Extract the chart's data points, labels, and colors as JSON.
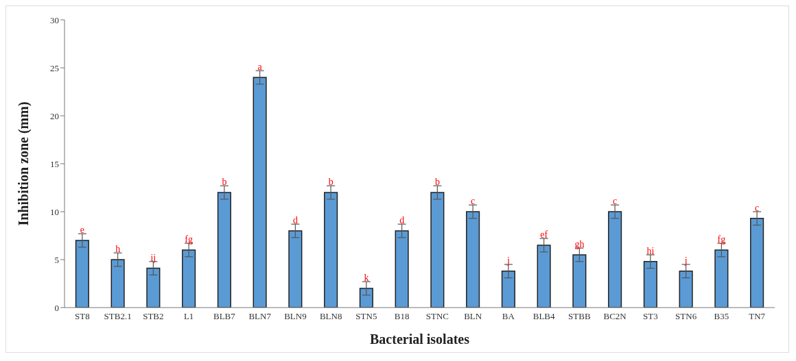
{
  "chart_data": {
    "type": "bar",
    "xlabel": "Bacterial isolates",
    "ylabel": "Inhibition zone (mm)",
    "categories": [
      "ST8",
      "STB2.1",
      "STB2",
      "L1",
      "BLB7",
      "BLN7",
      "BLN9",
      "BLN8",
      "STN5",
      "B18",
      "STNC",
      "BLN",
      "BA",
      "BLB4",
      "STBB",
      "BC2N",
      "ST3",
      "STN6",
      "B35",
      "TN7"
    ],
    "values": [
      7,
      5,
      4.1,
      6,
      12,
      24,
      8,
      12,
      2,
      8,
      12,
      10,
      3.8,
      6.5,
      5.5,
      10,
      4.8,
      3.8,
      6,
      9.3
    ],
    "errors": [
      0.7,
      0.7,
      0.7,
      0.7,
      0.7,
      0.7,
      0.7,
      0.7,
      0.7,
      0.7,
      0.7,
      0.7,
      0.7,
      0.7,
      0.7,
      0.7,
      0.7,
      0.7,
      0.7,
      0.7
    ],
    "color": "#5b9bd5",
    "ylim": [
      0,
      30
    ],
    "yticks": [
      0,
      5,
      10,
      15,
      20,
      25,
      30
    ],
    "grid": false,
    "legend": false,
    "annotations": [
      {
        "text": "e",
        "x": "ST8",
        "y": 7.7
      },
      {
        "text": "h",
        "x": "STB2.1",
        "y": 5.7
      },
      {
        "text": "ij",
        "x": "STB2",
        "y": 4.8
      },
      {
        "text": "fg",
        "x": "L1",
        "y": 6.7
      },
      {
        "text": "b",
        "x": "BLB7",
        "y": 12.7
      },
      {
        "text": "a",
        "x": "BLN7",
        "y": 24.7
      },
      {
        "text": "d",
        "x": "BLN9",
        "y": 8.7
      },
      {
        "text": "b",
        "x": "BLN8",
        "y": 12.7
      },
      {
        "text": "k",
        "x": "STN5",
        "y": 2.7
      },
      {
        "text": "d",
        "x": "B18",
        "y": 8.7
      },
      {
        "text": "b",
        "x": "STNC",
        "y": 12.7
      },
      {
        "text": "c",
        "x": "BLN",
        "y": 10.7
      },
      {
        "text": "j",
        "x": "BA",
        "y": 4.5
      },
      {
        "text": "ef",
        "x": "BLB4",
        "y": 7.2
      },
      {
        "text": "gh",
        "x": "STBB",
        "y": 6.2
      },
      {
        "text": "c",
        "x": "BC2N",
        "y": 10.7
      },
      {
        "text": "hi",
        "x": "ST3",
        "y": 5.5
      },
      {
        "text": "j",
        "x": "STN6",
        "y": 4.5
      },
      {
        "text": "fg",
        "x": "B35",
        "y": 6.7
      },
      {
        "text": "c",
        "x": "TN7",
        "y": 10
      }
    ]
  }
}
